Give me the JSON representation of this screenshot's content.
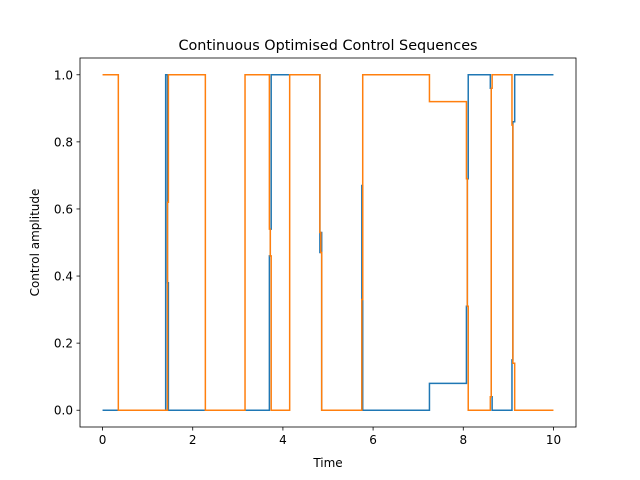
{
  "chart_data": {
    "type": "line",
    "title": "Continuous Optimised Control Sequences",
    "xlabel": "Time",
    "ylabel": "Control amplitude",
    "xlim": [
      -0.5,
      10.5
    ],
    "ylim": [
      -0.05,
      1.05
    ],
    "xticks": [
      0,
      2,
      4,
      6,
      8,
      10
    ],
    "xtick_labels": [
      "0",
      "2",
      "4",
      "6",
      "8",
      "10"
    ],
    "yticks": [
      0.0,
      0.2,
      0.4,
      0.6,
      0.8,
      1.0
    ],
    "ytick_labels": [
      "0.0",
      "0.2",
      "0.4",
      "0.6",
      "0.8",
      "1.0"
    ],
    "grid": false,
    "step": "post",
    "series": [
      {
        "color": "#1f77b4",
        "x": [
          0,
          0.35,
          1.4,
          1.44,
          1.46,
          2.28,
          3.16,
          3.7,
          3.72,
          3.74,
          4.15,
          4.82,
          4.84,
          4.86,
          5.75,
          5.77,
          7.25,
          8.07,
          8.09,
          8.11,
          8.6,
          8.62,
          8.64,
          9.08,
          9.1,
          9.14,
          10
        ],
        "y": [
          0,
          0,
          1,
          0.38,
          0,
          0,
          0,
          0.46,
          0.54,
          1,
          1,
          0.47,
          0.53,
          0,
          0.67,
          0,
          0.08,
          0.31,
          0.69,
          1,
          0.96,
          0.04,
          0,
          0.15,
          0.86,
          1,
          1
        ]
      },
      {
        "color": "#ff7f0e",
        "x": [
          0,
          0.35,
          1.4,
          1.44,
          1.46,
          2.28,
          3.16,
          3.7,
          3.72,
          3.74,
          4.15,
          4.82,
          4.84,
          4.86,
          5.75,
          5.77,
          7.25,
          8.07,
          8.09,
          8.11,
          8.6,
          8.62,
          8.64,
          9.08,
          9.1,
          9.14,
          10
        ],
        "y": [
          1,
          0,
          0,
          0.62,
          1,
          0,
          1,
          0.54,
          0.46,
          0,
          1,
          0.53,
          0.47,
          0,
          0.33,
          1,
          0.92,
          0.69,
          0.31,
          0,
          0.04,
          0.96,
          1,
          0.85,
          0.14,
          0,
          0
        ]
      }
    ]
  }
}
